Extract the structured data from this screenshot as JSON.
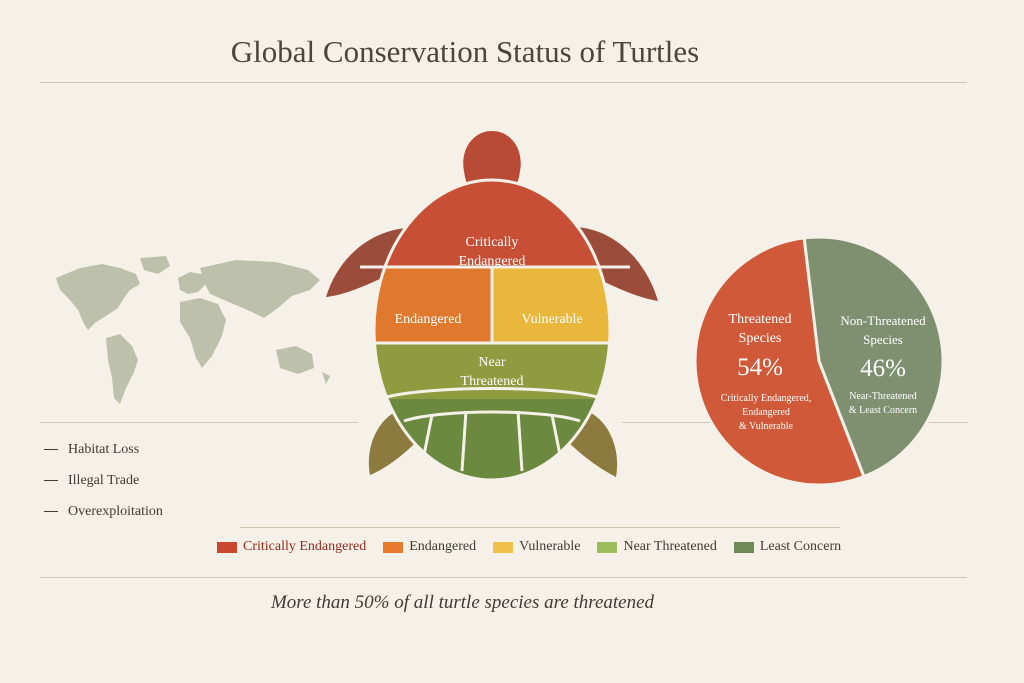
{
  "title": "Global Conservation Status of Turtles",
  "threats": [
    "Habitat Loss",
    "Illegal Trade",
    "Overexploitation"
  ],
  "turtle": {
    "head_color": "#b94a35",
    "flipper_color": "#9c4c3a",
    "rear_flipper_color": "#8c7a3e",
    "rows": [
      {
        "label_lines": [
          "Critically",
          "Endangered"
        ],
        "color": "#c64f36"
      },
      {
        "label_lines": [
          "Endangered"
        ],
        "color": "#e0782e"
      },
      {
        "label_lines": [
          "Vulnerable"
        ],
        "color": "#e8b73c"
      },
      {
        "label_lines": [
          "Near",
          "Threatened"
        ],
        "color": "#8f9b3f"
      },
      {
        "label_lines": [],
        "color": "#6b8a40"
      }
    ]
  },
  "chart_data": {
    "type": "pie",
    "title": "",
    "slices": [
      {
        "label_lines": [
          "Threatened",
          "Species"
        ],
        "value": 54,
        "value_label": "54%",
        "sub_lines": [
          "Critically Endangered,",
          "Endangered",
          "& Vulnerable"
        ],
        "color": "#d0593a"
      },
      {
        "label_lines": [
          "Non-Threatened",
          "Species"
        ],
        "value": 46,
        "value_label": "46%",
        "sub_lines": [
          "Near-Threatened",
          "& Least Concern"
        ],
        "color": "#7f9070"
      }
    ]
  },
  "legend": [
    {
      "label": "Critically Endangered",
      "color": "#c9472f"
    },
    {
      "label": "Endangered",
      "color": "#e87a2d"
    },
    {
      "label": "Vulnerable",
      "color": "#f0c04a"
    },
    {
      "label": "Near Threatened",
      "color": "#9bbd5a"
    },
    {
      "label": "Least Concern",
      "color": "#6e8a58"
    }
  ],
  "footer": "More than 50% of all turtle species are threatened"
}
